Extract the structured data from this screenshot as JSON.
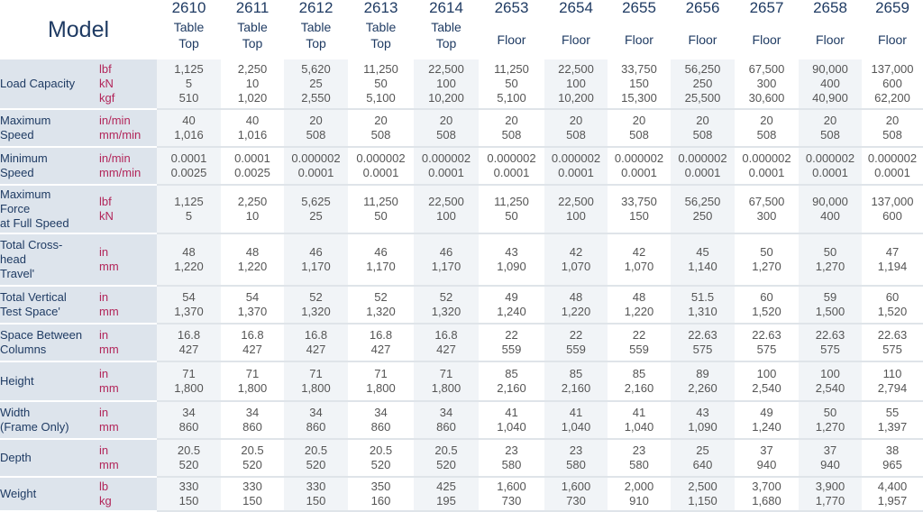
{
  "header": {
    "model_label": "Model",
    "columns": [
      {
        "model": "2610",
        "type": [
          "Table",
          "Top"
        ]
      },
      {
        "model": "2611",
        "type": [
          "Table",
          "Top"
        ]
      },
      {
        "model": "2612",
        "type": [
          "Table",
          "Top"
        ]
      },
      {
        "model": "2613",
        "type": [
          "Table",
          "Top"
        ]
      },
      {
        "model": "2614",
        "type": [
          "Table",
          "Top"
        ]
      },
      {
        "model": "2653",
        "type": [
          "Floor"
        ]
      },
      {
        "model": "2654",
        "type": [
          "Floor"
        ]
      },
      {
        "model": "2655",
        "type": [
          "Floor"
        ]
      },
      {
        "model": "2656",
        "type": [
          "Floor"
        ]
      },
      {
        "model": "2657",
        "type": [
          "Floor"
        ]
      },
      {
        "model": "2658",
        "type": [
          "Floor"
        ]
      },
      {
        "model": "2659",
        "type": [
          "Floor"
        ]
      }
    ]
  },
  "rows": [
    {
      "label": [
        "Load Capacity"
      ],
      "units": [
        "lbf",
        "kN",
        "kgf"
      ],
      "values": [
        [
          "1,125",
          "5",
          "510"
        ],
        [
          "2,250",
          "10",
          "1,020"
        ],
        [
          "5,620",
          "25",
          "2,550"
        ],
        [
          "11,250",
          "50",
          "5,100"
        ],
        [
          "22,500",
          "100",
          "10,200"
        ],
        [
          "11,250",
          "50",
          "5,100"
        ],
        [
          "22,500",
          "100",
          "10,200"
        ],
        [
          "33,750",
          "150",
          "15,300"
        ],
        [
          "56,250",
          "250",
          "25,500"
        ],
        [
          "67,500",
          "300",
          "30,600"
        ],
        [
          "90,000",
          "400",
          "40,900"
        ],
        [
          "137,000",
          "600",
          "62,200"
        ]
      ]
    },
    {
      "label": [
        "Maximum",
        "Speed"
      ],
      "units": [
        "in/min",
        "mm/min"
      ],
      "values": [
        [
          "40",
          "1,016"
        ],
        [
          "40",
          "1,016"
        ],
        [
          "20",
          "508"
        ],
        [
          "20",
          "508"
        ],
        [
          "20",
          "508"
        ],
        [
          "20",
          "508"
        ],
        [
          "20",
          "508"
        ],
        [
          "20",
          "508"
        ],
        [
          "20",
          "508"
        ],
        [
          "20",
          "508"
        ],
        [
          "20",
          "508"
        ],
        [
          "20",
          "508"
        ]
      ]
    },
    {
      "label": [
        "Minimum",
        "Speed"
      ],
      "units": [
        "in/min",
        "mm/min"
      ],
      "values": [
        [
          "0.0001",
          "0.0025"
        ],
        [
          "0.0001",
          "0.0025"
        ],
        [
          "0.000002",
          "0.0001"
        ],
        [
          "0.000002",
          "0.0001"
        ],
        [
          "0.000002",
          "0.0001"
        ],
        [
          "0.000002",
          "0.0001"
        ],
        [
          "0.000002",
          "0.0001"
        ],
        [
          "0.000002",
          "0.0001"
        ],
        [
          "0.000002",
          "0.0001"
        ],
        [
          "0.000002",
          "0.0001"
        ],
        [
          "0.000002",
          "0.0001"
        ],
        [
          "0.000002",
          "0.0001"
        ]
      ]
    },
    {
      "label": [
        "Maximum",
        "Force",
        "at Full Speed"
      ],
      "units": [
        "lbf",
        "kN"
      ],
      "values": [
        [
          "1,125",
          "5"
        ],
        [
          "2,250",
          "10"
        ],
        [
          "5,625",
          "25"
        ],
        [
          "11,250",
          "50"
        ],
        [
          "22,500",
          "100"
        ],
        [
          "11,250",
          "50"
        ],
        [
          "22,500",
          "100"
        ],
        [
          "33,750",
          "150"
        ],
        [
          "56,250",
          "250"
        ],
        [
          "67,500",
          "300"
        ],
        [
          "90,000",
          "400"
        ],
        [
          "137,000",
          "600"
        ]
      ]
    },
    {
      "label": [
        "Total Cross-",
        "head",
        "Travel'"
      ],
      "units": [
        "in",
        "mm"
      ],
      "values": [
        [
          "48",
          "1,220"
        ],
        [
          "48",
          "1,220"
        ],
        [
          "46",
          "1,170"
        ],
        [
          "46",
          "1,170"
        ],
        [
          "46",
          "1,170"
        ],
        [
          "43",
          "1,090"
        ],
        [
          "42",
          "1,070"
        ],
        [
          "42",
          "1,070"
        ],
        [
          "45",
          "1,140"
        ],
        [
          "50",
          "1,270"
        ],
        [
          "50",
          "1,270"
        ],
        [
          "47",
          "1,194"
        ]
      ]
    },
    {
      "label": [
        "Total Vertical",
        "Test Space'"
      ],
      "units": [
        "in",
        "mm"
      ],
      "values": [
        [
          "54",
          "1,370"
        ],
        [
          "54",
          "1,370"
        ],
        [
          "52",
          "1,320"
        ],
        [
          "52",
          "1,320"
        ],
        [
          "52",
          "1,320"
        ],
        [
          "49",
          "1,240"
        ],
        [
          "48",
          "1,220"
        ],
        [
          "48",
          "1,220"
        ],
        [
          "51.5",
          "1,310"
        ],
        [
          "60",
          "1,520"
        ],
        [
          "59",
          "1,500"
        ],
        [
          "60",
          "1,520"
        ]
      ]
    },
    {
      "label": [
        "Space Between",
        "Columns"
      ],
      "units": [
        "in",
        "mm"
      ],
      "values": [
        [
          "16.8",
          "427"
        ],
        [
          "16.8",
          "427"
        ],
        [
          "16.8",
          "427"
        ],
        [
          "16.8",
          "427"
        ],
        [
          "16.8",
          "427"
        ],
        [
          "22",
          "559"
        ],
        [
          "22",
          "559"
        ],
        [
          "22",
          "559"
        ],
        [
          "22.63",
          "575"
        ],
        [
          "22.63",
          "575"
        ],
        [
          "22.63",
          "575"
        ],
        [
          "22.63",
          "575"
        ]
      ]
    },
    {
      "label": [
        "Height"
      ],
      "units": [
        "in",
        "mm"
      ],
      "values": [
        [
          "71",
          "1,800"
        ],
        [
          "71",
          "1,800"
        ],
        [
          "71",
          "1,800"
        ],
        [
          "71",
          "1,800"
        ],
        [
          "71",
          "1,800"
        ],
        [
          "85",
          "2,160"
        ],
        [
          "85",
          "2,160"
        ],
        [
          "85",
          "2,160"
        ],
        [
          "89",
          "2,260"
        ],
        [
          "100",
          "2,540"
        ],
        [
          "100",
          "2,540"
        ],
        [
          "110",
          "2,794"
        ]
      ]
    },
    {
      "label": [
        "Width",
        "(Frame Only)"
      ],
      "units": [
        "in",
        "mm"
      ],
      "values": [
        [
          "34",
          "860"
        ],
        [
          "34",
          "860"
        ],
        [
          "34",
          "860"
        ],
        [
          "34",
          "860"
        ],
        [
          "34",
          "860"
        ],
        [
          "41",
          "1,040"
        ],
        [
          "41",
          "1,040"
        ],
        [
          "41",
          "1,040"
        ],
        [
          "43",
          "1,090"
        ],
        [
          "49",
          "1,240"
        ],
        [
          "50",
          "1,270"
        ],
        [
          "55",
          "1,397"
        ]
      ]
    },
    {
      "label": [
        "Depth"
      ],
      "units": [
        "in",
        "mm"
      ],
      "values": [
        [
          "20.5",
          "520"
        ],
        [
          "20.5",
          "520"
        ],
        [
          "20.5",
          "520"
        ],
        [
          "20.5",
          "520"
        ],
        [
          "20.5",
          "520"
        ],
        [
          "23",
          "580"
        ],
        [
          "23",
          "580"
        ],
        [
          "23",
          "580"
        ],
        [
          "25",
          "640"
        ],
        [
          "37",
          "940"
        ],
        [
          "37",
          "940"
        ],
        [
          "38",
          "965"
        ]
      ]
    },
    {
      "label": [
        "Weight"
      ],
      "units": [
        "lb",
        "kg"
      ],
      "values": [
        [
          "330",
          "150"
        ],
        [
          "330",
          "150"
        ],
        [
          "330",
          "150"
        ],
        [
          "350",
          "160"
        ],
        [
          "425",
          "195"
        ],
        [
          "1,600",
          "730"
        ],
        [
          "1,600",
          "730"
        ],
        [
          "2,000",
          "910"
        ],
        [
          "2,500",
          "1,150"
        ],
        [
          "3,700",
          "1,680"
        ],
        [
          "3,900",
          "1,770"
        ],
        [
          "4,400",
          "1,957"
        ]
      ]
    }
  ]
}
